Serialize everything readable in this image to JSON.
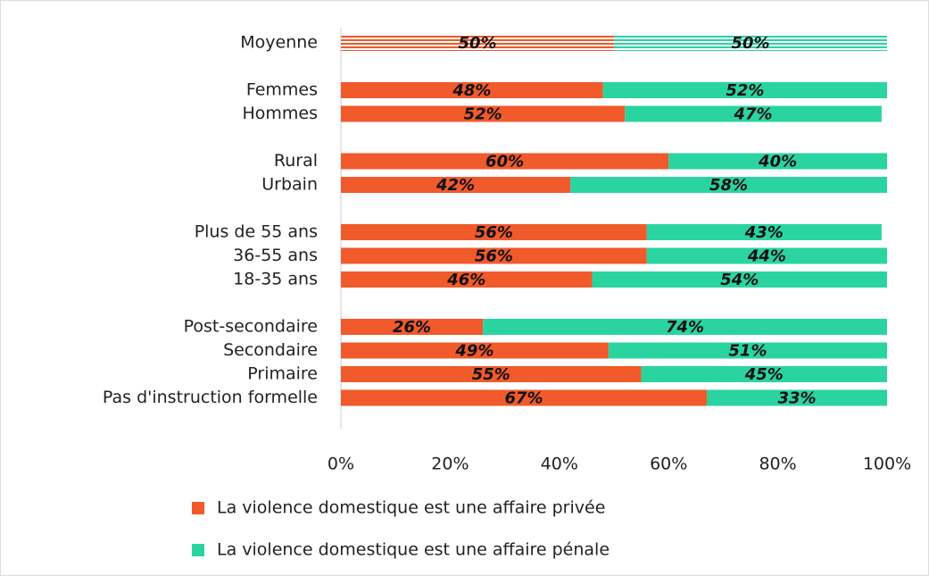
{
  "chart_data": {
    "type": "stacked_bar_horizontal",
    "categories": [
      "Moyenne",
      null,
      "Femmes",
      "Hommes",
      null,
      "Rural",
      "Urbain",
      null,
      "Plus de 55 ans",
      "36-55 ans",
      "18-35 ans",
      null,
      "Post-secondaire",
      "Secondaire",
      "Primaire",
      "Pas d'instruction formelle"
    ],
    "series": [
      {
        "name": "La violence domestique est une affaire privée",
        "color": "#f15a2b",
        "values": [
          50,
          null,
          48,
          52,
          null,
          60,
          42,
          null,
          56,
          56,
          46,
          null,
          26,
          49,
          55,
          67
        ],
        "value_labels": [
          "50%",
          null,
          "48%",
          "52%",
          null,
          "60%",
          "42%",
          null,
          "56%",
          "56%",
          "46%",
          null,
          "26%",
          "49%",
          "55%",
          "67%"
        ]
      },
      {
        "name": "La violence domestique est une affaire pénale",
        "color": "#2ad4a1",
        "values": [
          50,
          null,
          52,
          47,
          null,
          40,
          58,
          null,
          43,
          44,
          54,
          null,
          74,
          51,
          45,
          33
        ],
        "value_labels": [
          "50%",
          null,
          "52%",
          "47%",
          null,
          "40%",
          "58%",
          null,
          "43%",
          "44%",
          "54%",
          null,
          "74%",
          "51%",
          "45%",
          "33%"
        ]
      }
    ],
    "xlim": [
      0,
      100
    ],
    "xticks": [
      {
        "value": 0,
        "label": "0%"
      },
      {
        "value": 20,
        "label": "20%"
      },
      {
        "value": 40,
        "label": "40%"
      },
      {
        "value": 60,
        "label": "60%"
      },
      {
        "value": 80,
        "label": "80%"
      },
      {
        "value": 100,
        "label": "100%"
      }
    ],
    "legend": "bottom"
  }
}
